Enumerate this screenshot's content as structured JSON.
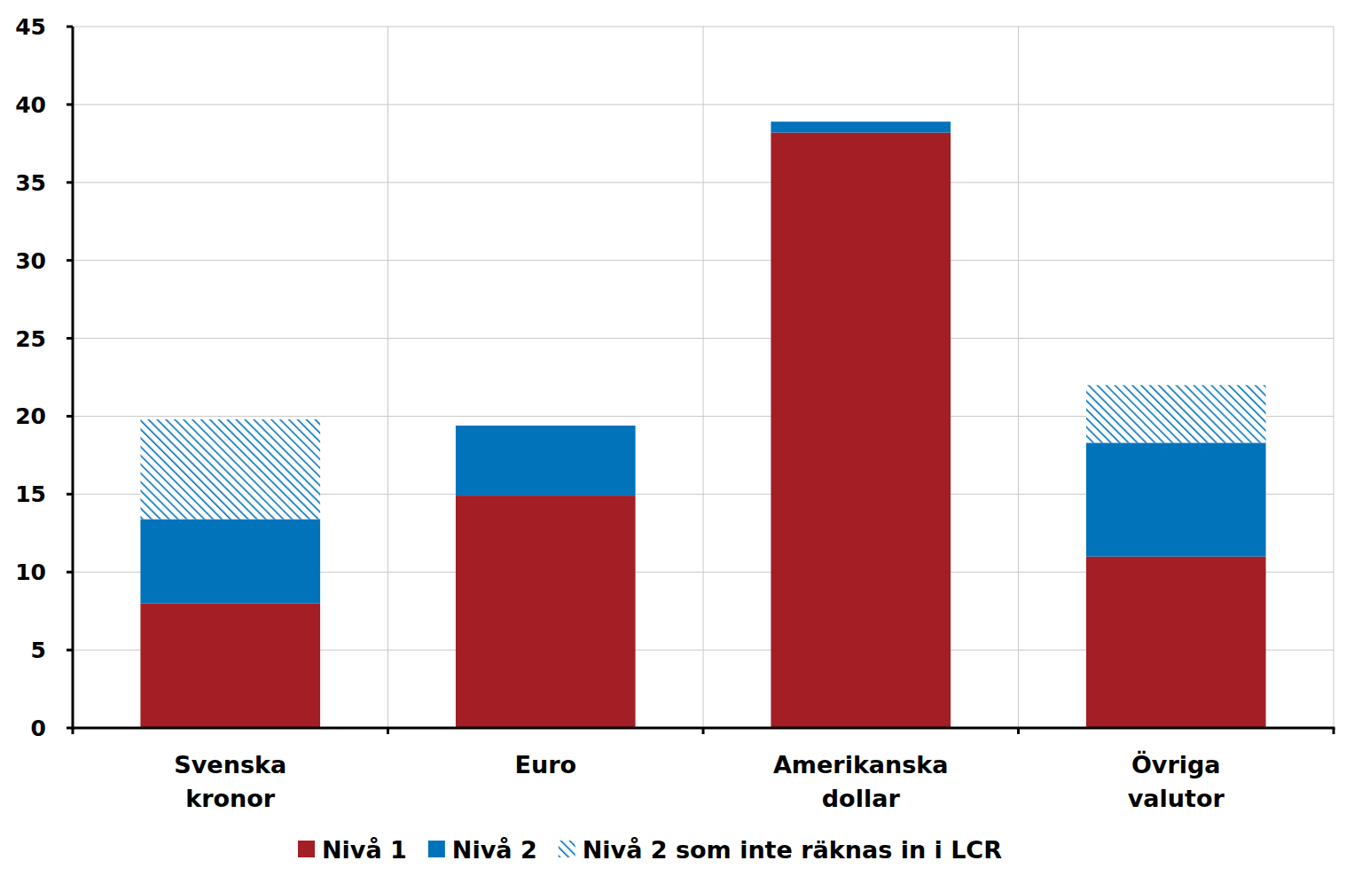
{
  "chart_data": {
    "type": "bar",
    "stacked": true,
    "grid": true,
    "legend": "bottom",
    "categories": [
      "Svenska kronor",
      "Euro",
      "Amerikanska dollar",
      "Övriga valutor"
    ],
    "series": [
      {
        "name": "Nivå 1",
        "color": "#a31e25",
        "values": [
          8.0,
          14.9,
          38.2,
          11.0
        ]
      },
      {
        "name": "Nivå 2",
        "color": "#0073bb",
        "values": [
          5.4,
          4.5,
          0.7,
          7.3
        ]
      },
      {
        "name": "Nivå 2 som inte räknas in i LCR",
        "color": "#0073bb",
        "line_style": "hatched",
        "values": [
          6.4,
          0,
          0,
          3.7
        ]
      }
    ],
    "ylim": [
      0,
      45
    ],
    "yticks": [
      0,
      5,
      10,
      15,
      20,
      25,
      30,
      35,
      40,
      45
    ]
  }
}
